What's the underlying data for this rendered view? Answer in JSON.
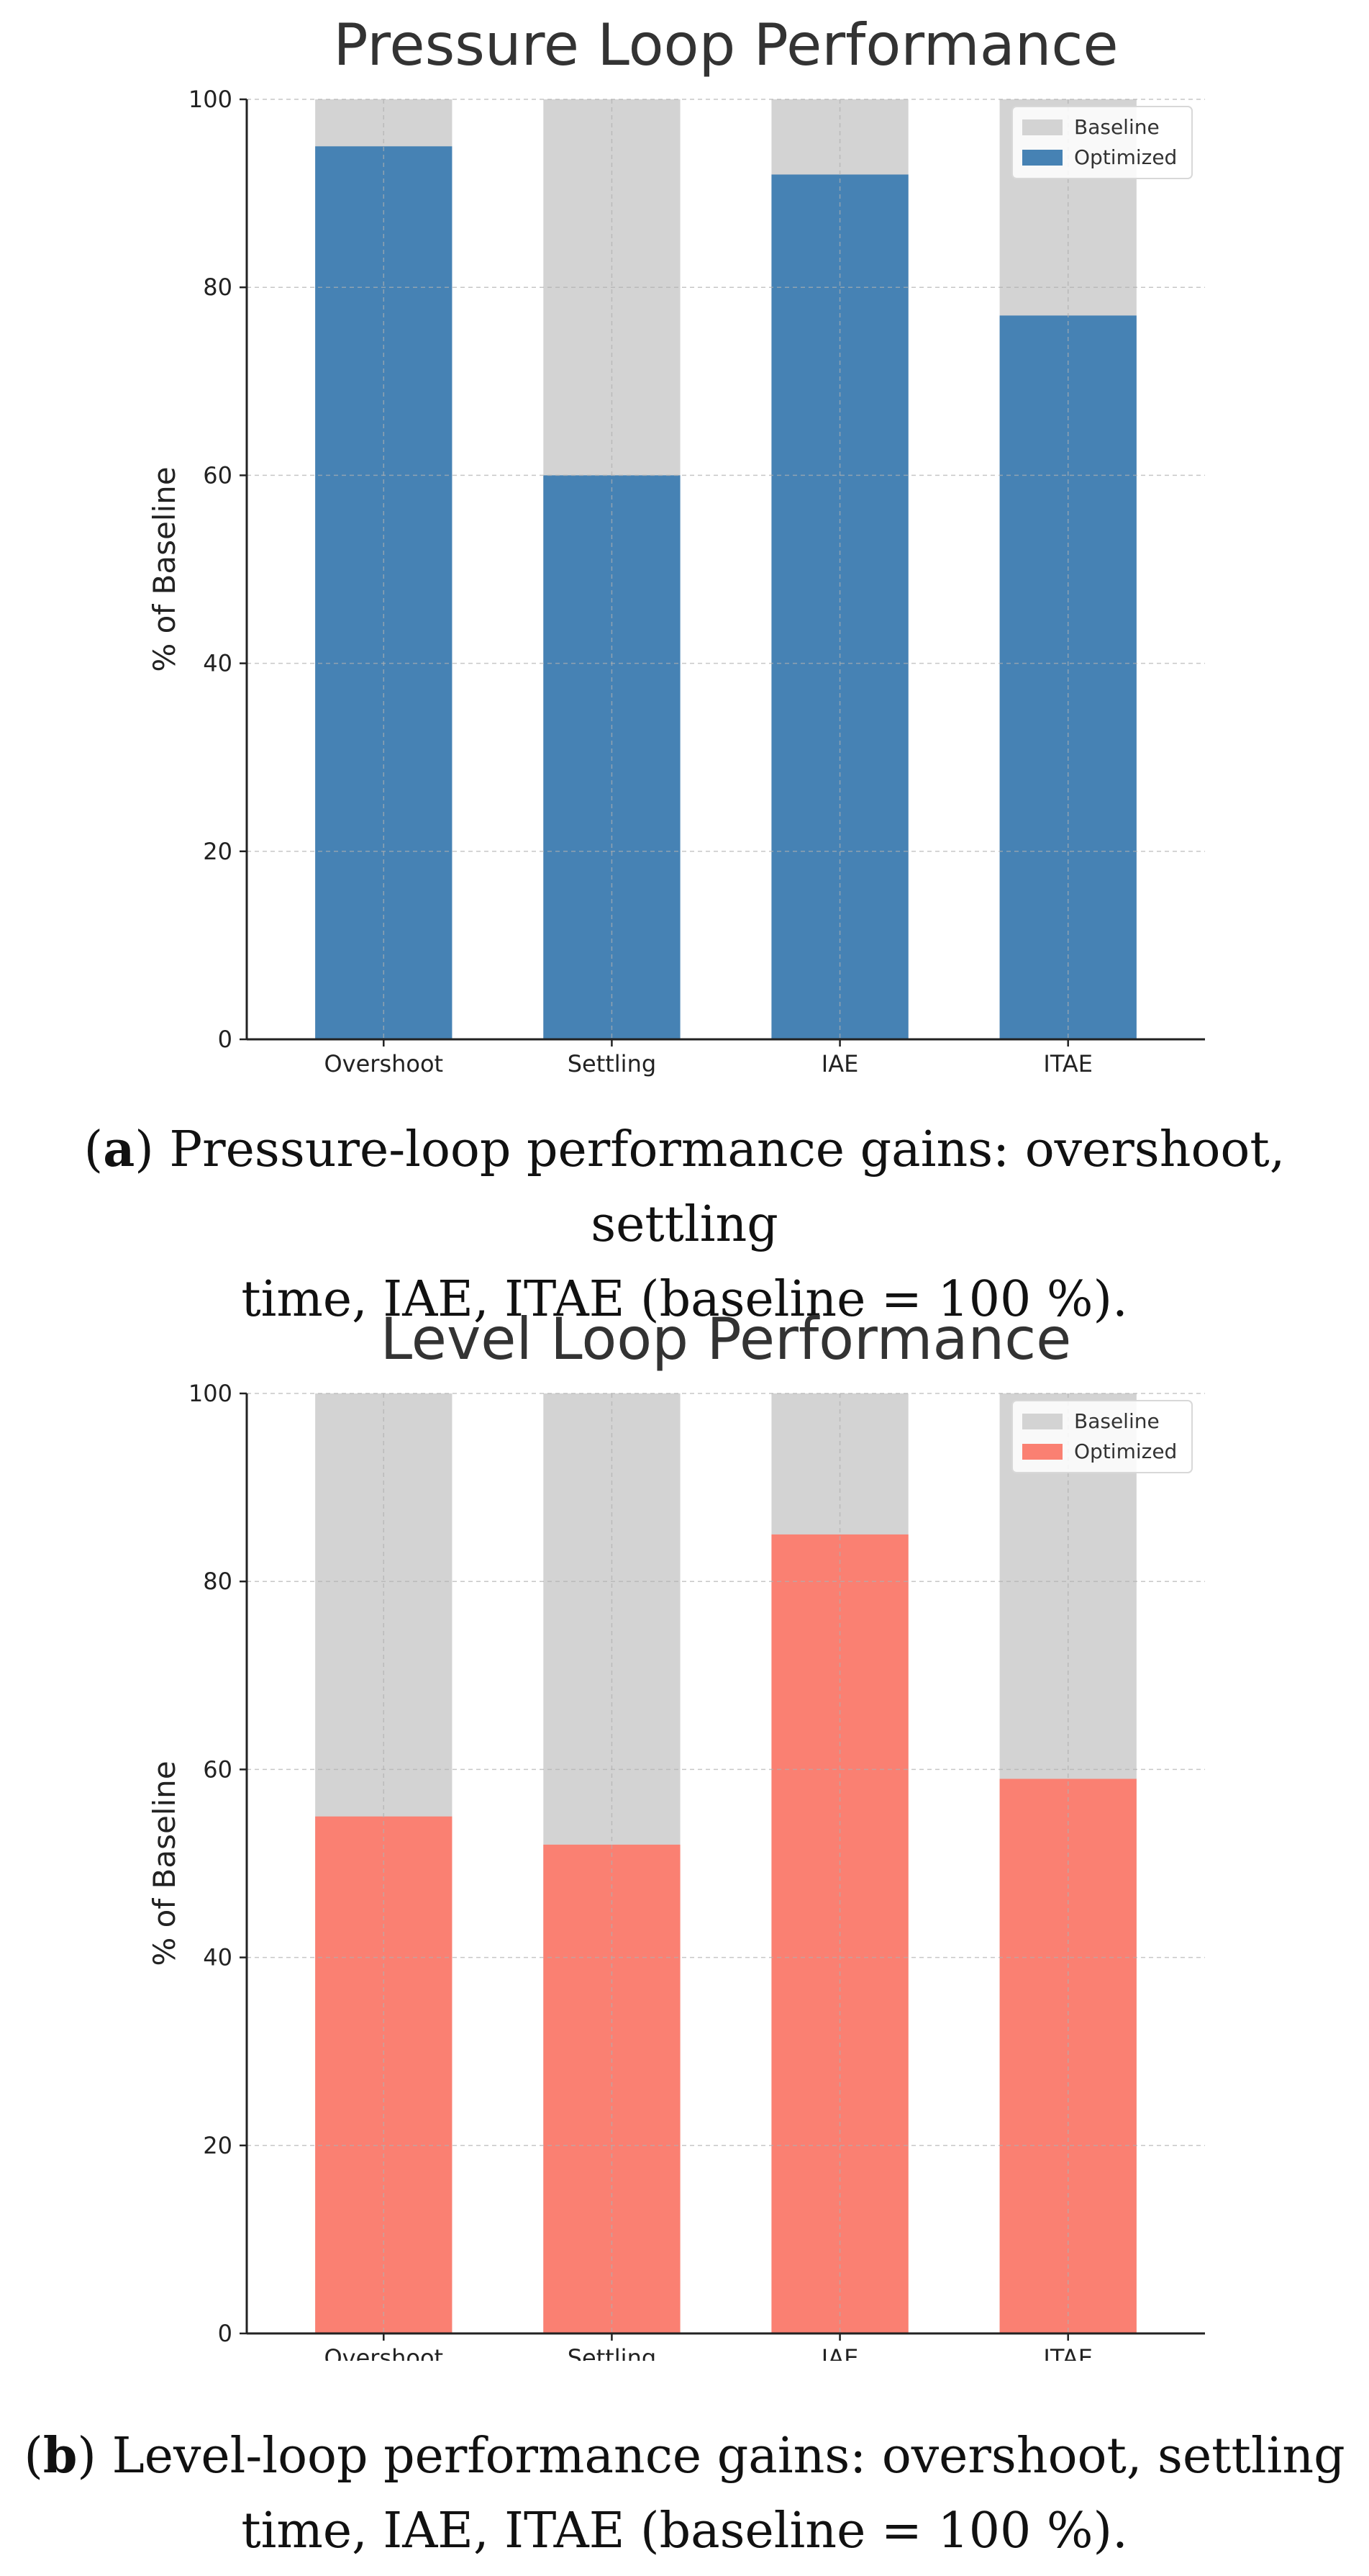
{
  "chart_data": [
    {
      "type": "bar",
      "stacked_overlay": true,
      "title": "Pressure Loop Performance",
      "xlabel": "",
      "ylabel": "% of Baseline",
      "ylim": [
        0,
        100
      ],
      "yticks": [
        0,
        20,
        40,
        60,
        80,
        100
      ],
      "grid": true,
      "legend_position": "top-right",
      "categories": [
        "Overshoot",
        "Settling",
        "IAE",
        "ITAE"
      ],
      "series": [
        {
          "name": "Baseline",
          "values": [
            100,
            100,
            100,
            100
          ],
          "color": "#d3d3d3"
        },
        {
          "name": "Optimized",
          "values": [
            95,
            60,
            92,
            77
          ],
          "color": "#4682b4"
        }
      ],
      "caption_label": "a",
      "caption_line1": "Pressure-loop performance gains: overshoot, settling",
      "caption_line2": "time, IAE, ITAE (baseline = 100 %)."
    },
    {
      "type": "bar",
      "stacked_overlay": true,
      "title": "Level Loop Performance",
      "xlabel": "",
      "ylabel": "% of Baseline",
      "ylim": [
        0,
        100
      ],
      "yticks": [
        0,
        20,
        40,
        60,
        80,
        100
      ],
      "grid": true,
      "legend_position": "top-right",
      "categories": [
        "Overshoot",
        "Settling",
        "IAE",
        "ITAE"
      ],
      "series": [
        {
          "name": "Baseline",
          "values": [
            100,
            100,
            100,
            100
          ],
          "color": "#d3d3d3"
        },
        {
          "name": "Optimized",
          "values": [
            55,
            52,
            85,
            59
          ],
          "color": "#fa8072"
        }
      ],
      "caption_label": "b",
      "caption_line1": "Level-loop performance gains: overshoot, settling",
      "caption_line2": "time, IAE, ITAE (baseline = 100 %)."
    }
  ]
}
